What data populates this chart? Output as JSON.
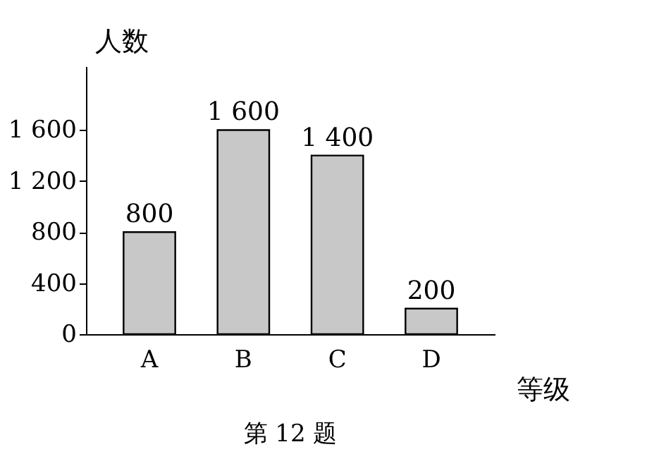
{
  "chart_data": {
    "type": "bar",
    "categories": [
      "A",
      "B",
      "C",
      "D"
    ],
    "values": [
      800,
      1600,
      1400,
      200
    ],
    "color": "#c8c8c8",
    "value_labels": [
      "800",
      "1 600",
      "1 400",
      "200"
    ],
    "ylim": [
      0,
      2100
    ],
    "yticks": [
      0,
      400,
      800,
      {
        "value": 1200,
        "label": "1 200"
      },
      {
        "value": 1600,
        "label": "1 600"
      }
    ],
    "xlabel": "等级",
    "ylabel": "人数",
    "annotations": [
      "第 12 题"
    ],
    "grid": false
  }
}
